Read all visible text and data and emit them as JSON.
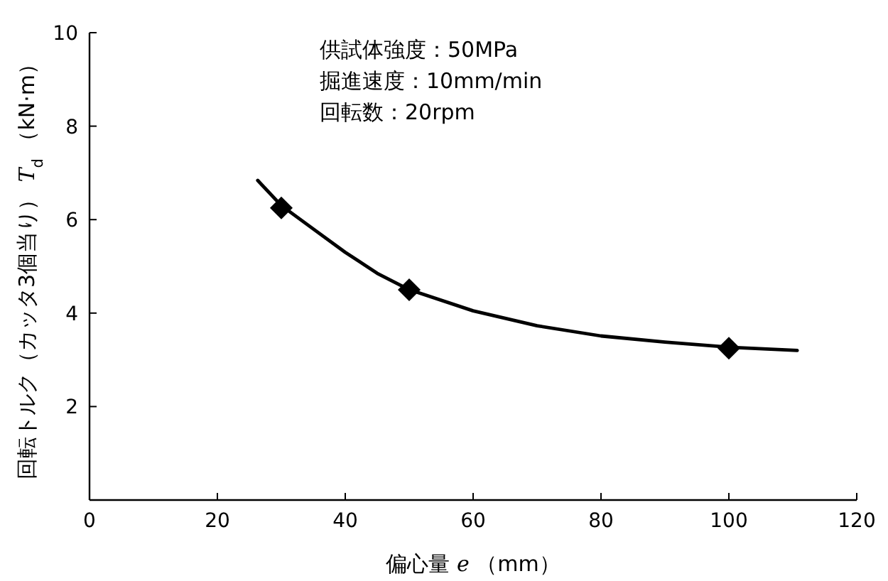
{
  "chart_data": {
    "type": "line",
    "xlabel": "偏心量 *e* （mm）",
    "ylabel": "回転トルク（カッタ3個当り） *T*$_{d}$ （kN·m）",
    "annotations": [
      "供試体強度：50MPa",
      "掘進速度：10mm/min",
      "回転数：20rpm"
    ],
    "xlim": [
      0,
      120
    ],
    "ylim": [
      0,
      10
    ],
    "xticks": [
      0,
      20,
      40,
      60,
      80,
      100,
      120
    ],
    "yticks": [
      2,
      4,
      6,
      8,
      10
    ],
    "grid": false,
    "series": [
      {
        "color": "#000000",
        "marker": "none",
        "x": [
          26.3,
          30,
          35,
          40,
          45,
          50,
          60,
          70,
          80,
          90,
          100,
          110.7
        ],
        "values": [
          6.84,
          6.3,
          5.8,
          5.3,
          4.85,
          4.5,
          4.05,
          3.73,
          3.51,
          3.38,
          3.27,
          3.2
        ]
      },
      {
        "type": "scatter",
        "color": "#000000",
        "marker": "diamond",
        "x": [
          30,
          50,
          100
        ],
        "values": [
          6.25,
          4.5,
          3.25
        ]
      }
    ]
  }
}
